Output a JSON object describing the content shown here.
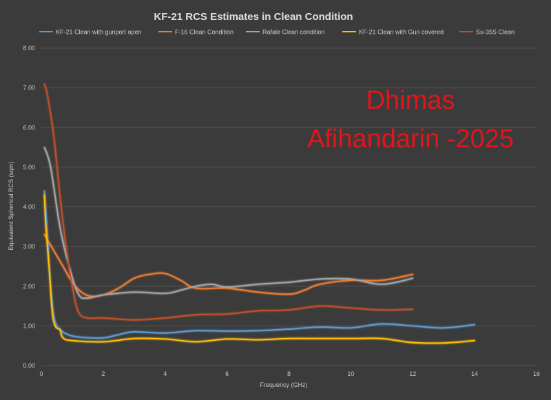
{
  "chart_data": {
    "type": "line",
    "title": "KF-21 RCS Estimates in Clean Condition",
    "xlabel": "Frequency (GHz)",
    "ylabel": "Equivalent Spherical RCS (sqm)",
    "xlim": [
      0,
      16
    ],
    "ylim": [
      0,
      8
    ],
    "x_ticks": [
      "0",
      "2",
      "4",
      "6",
      "8",
      "10",
      "12",
      "14",
      "16"
    ],
    "y_ticks": [
      "0.00",
      "1.00",
      "2.00",
      "3.00",
      "4.00",
      "5.00",
      "6.00",
      "7.00",
      "8.00"
    ],
    "grid": true,
    "legend_position": "top",
    "watermark": [
      "Dhimas",
      "Afihandarin -2025"
    ],
    "series": [
      {
        "name": "KF-21 Clean with gunport open",
        "color": "#5b9bd5",
        "points": [
          [
            0.1,
            4.4
          ],
          [
            0.2,
            3.2
          ],
          [
            0.3,
            2.0
          ],
          [
            0.4,
            1.25
          ],
          [
            0.5,
            1.0
          ],
          [
            0.6,
            0.92
          ],
          [
            0.8,
            0.8
          ],
          [
            1.2,
            0.72
          ],
          [
            2.0,
            0.7
          ],
          [
            2.5,
            0.78
          ],
          [
            3.0,
            0.85
          ],
          [
            4.0,
            0.82
          ],
          [
            5.0,
            0.88
          ],
          [
            6.0,
            0.87
          ],
          [
            7.0,
            0.88
          ],
          [
            8.0,
            0.92
          ],
          [
            9.0,
            0.97
          ],
          [
            10.0,
            0.95
          ],
          [
            11.0,
            1.05
          ],
          [
            12.0,
            1.0
          ],
          [
            13.0,
            0.95
          ],
          [
            14.0,
            1.03
          ]
        ]
      },
      {
        "name": "F-16 Clean Condition",
        "color": "#ed7d31",
        "points": [
          [
            0.1,
            3.3
          ],
          [
            0.4,
            2.9
          ],
          [
            0.7,
            2.5
          ],
          [
            1.0,
            2.1
          ],
          [
            1.3,
            1.85
          ],
          [
            1.6,
            1.75
          ],
          [
            2.0,
            1.78
          ],
          [
            2.5,
            1.95
          ],
          [
            3.0,
            2.2
          ],
          [
            3.5,
            2.3
          ],
          [
            4.0,
            2.32
          ],
          [
            4.5,
            2.15
          ],
          [
            5.0,
            1.95
          ],
          [
            6.0,
            1.95
          ],
          [
            7.0,
            1.85
          ],
          [
            8.0,
            1.8
          ],
          [
            8.5,
            1.9
          ],
          [
            9.0,
            2.05
          ],
          [
            10.0,
            2.15
          ],
          [
            11.0,
            2.15
          ],
          [
            12.0,
            2.3
          ]
        ]
      },
      {
        "name": "Rafale Clean condition",
        "color": "#a5a5a5",
        "points": [
          [
            0.1,
            5.5
          ],
          [
            0.3,
            5.0
          ],
          [
            0.6,
            3.5
          ],
          [
            0.9,
            2.5
          ],
          [
            1.2,
            1.8
          ],
          [
            1.5,
            1.7
          ],
          [
            2.0,
            1.78
          ],
          [
            3.0,
            1.85
          ],
          [
            4.0,
            1.82
          ],
          [
            4.5,
            1.9
          ],
          [
            5.0,
            2.0
          ],
          [
            5.5,
            2.05
          ],
          [
            6.0,
            1.98
          ],
          [
            7.0,
            2.05
          ],
          [
            8.0,
            2.1
          ],
          [
            9.0,
            2.18
          ],
          [
            10.0,
            2.18
          ],
          [
            11.0,
            2.05
          ],
          [
            12.0,
            2.2
          ]
        ]
      },
      {
        "name": "KF-21 Clean with Gun covered",
        "color": "#ffc000",
        "points": [
          [
            0.1,
            4.3
          ],
          [
            0.15,
            3.5
          ],
          [
            0.25,
            2.5
          ],
          [
            0.35,
            1.4
          ],
          [
            0.45,
            1.0
          ],
          [
            0.6,
            0.9
          ],
          [
            0.7,
            0.7
          ],
          [
            1.0,
            0.63
          ],
          [
            2.0,
            0.6
          ],
          [
            3.0,
            0.68
          ],
          [
            4.0,
            0.67
          ],
          [
            5.0,
            0.6
          ],
          [
            6.0,
            0.67
          ],
          [
            7.0,
            0.65
          ],
          [
            8.0,
            0.68
          ],
          [
            9.0,
            0.68
          ],
          [
            10.0,
            0.68
          ],
          [
            11.0,
            0.68
          ],
          [
            12.0,
            0.58
          ],
          [
            13.0,
            0.57
          ],
          [
            14.0,
            0.63
          ]
        ]
      },
      {
        "name": "Su-35S Clean",
        "color": "#c0502a",
        "points": [
          [
            0.1,
            7.1
          ],
          [
            0.2,
            6.8
          ],
          [
            0.4,
            5.8
          ],
          [
            0.6,
            4.3
          ],
          [
            0.8,
            3.0
          ],
          [
            1.0,
            2.0
          ],
          [
            1.2,
            1.35
          ],
          [
            1.5,
            1.2
          ],
          [
            2.0,
            1.2
          ],
          [
            3.0,
            1.15
          ],
          [
            4.0,
            1.2
          ],
          [
            5.0,
            1.28
          ],
          [
            6.0,
            1.3
          ],
          [
            7.0,
            1.38
          ],
          [
            8.0,
            1.4
          ],
          [
            9.0,
            1.5
          ],
          [
            10.0,
            1.45
          ],
          [
            11.0,
            1.4
          ],
          [
            12.0,
            1.42
          ]
        ]
      }
    ]
  }
}
